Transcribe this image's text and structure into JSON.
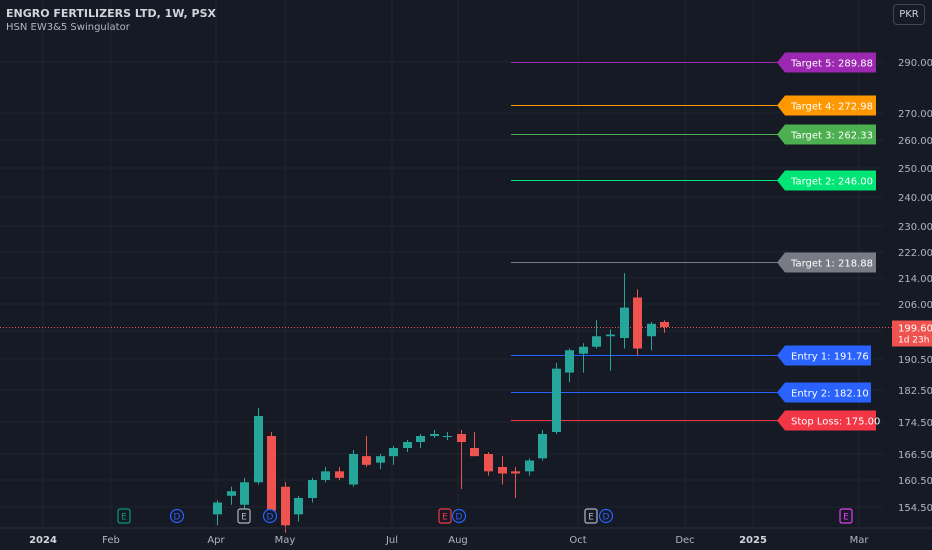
{
  "header": {
    "title": "ENGRO FERTILIZERS LTD, 1W, PSX",
    "indicator": "HSN EW3&5 Swingulator",
    "currency": "PKR"
  },
  "colors": {
    "background": "#161a25",
    "grid": "#1f2430",
    "axis_text": "#b2b5be",
    "up": "#26a69a",
    "down": "#ef5350",
    "price_line": "#ef5350"
  },
  "chart_data": {
    "type": "candlestick",
    "y_axis": {
      "position": "right",
      "ticks": [
        "290.00",
        "270.00",
        "260.00",
        "250.00",
        "240.00",
        "230.00",
        "222.00",
        "214.00",
        "206.00",
        "198.50",
        "190.50",
        "182.50",
        "174.50",
        "166.50",
        "160.50",
        "154.50"
      ]
    },
    "x_axis": {
      "ticks": [
        "2024",
        "Feb",
        "Apr",
        "May",
        "Jul",
        "Aug",
        "Oct",
        "Dec",
        "2025",
        "Mar"
      ]
    },
    "candles": [
      {
        "o": 153.5,
        "h": 156.0,
        "l": 152.0,
        "c": 155.5
      },
      {
        "o": 157.0,
        "h": 159.0,
        "l": 155.0,
        "c": 158.0
      },
      {
        "o": 155.0,
        "h": 161.0,
        "l": 153.0,
        "c": 160.0
      },
      {
        "o": 160.0,
        "h": 178.0,
        "l": 159.5,
        "c": 176.0
      },
      {
        "o": 171.0,
        "h": 172.0,
        "l": 153.0,
        "c": 154.0
      },
      {
        "o": 159.0,
        "h": 160.0,
        "l": 151.0,
        "c": 152.0
      },
      {
        "o": 153.5,
        "h": 157.0,
        "l": 152.5,
        "c": 156.5
      },
      {
        "o": 156.5,
        "h": 161.0,
        "l": 155.5,
        "c": 160.5
      },
      {
        "o": 160.5,
        "h": 163.5,
        "l": 160.0,
        "c": 162.5
      },
      {
        "o": 162.5,
        "h": 163.5,
        "l": 160.5,
        "c": 161.0
      },
      {
        "o": 159.5,
        "h": 167.5,
        "l": 159.0,
        "c": 166.5
      },
      {
        "o": 166.0,
        "h": 171.0,
        "l": 163.5,
        "c": 164.0
      },
      {
        "o": 164.5,
        "h": 166.5,
        "l": 163.0,
        "c": 166.0
      },
      {
        "o": 166.0,
        "h": 168.5,
        "l": 164.0,
        "c": 168.0
      },
      {
        "o": 168.0,
        "h": 170.0,
        "l": 167.0,
        "c": 169.5
      },
      {
        "o": 169.5,
        "h": 171.5,
        "l": 168.0,
        "c": 171.0
      },
      {
        "o": 171.0,
        "h": 172.5,
        "l": 170.5,
        "c": 171.5
      },
      {
        "o": 171.0,
        "h": 172.0,
        "l": 170.0,
        "c": 171.0
      },
      {
        "o": 171.5,
        "h": 172.5,
        "l": 158.5,
        "c": 169.5
      },
      {
        "o": 168.0,
        "h": 172.0,
        "l": 166.0,
        "c": 166.0
      },
      {
        "o": 166.5,
        "h": 167.0,
        "l": 161.5,
        "c": 162.5
      },
      {
        "o": 163.5,
        "h": 166.0,
        "l": 159.5,
        "c": 162.0
      },
      {
        "o": 162.5,
        "h": 163.5,
        "l": 156.5,
        "c": 162.0
      },
      {
        "o": 162.5,
        "h": 165.5,
        "l": 161.5,
        "c": 165.0
      },
      {
        "o": 165.5,
        "h": 172.5,
        "l": 165.0,
        "c": 171.5
      },
      {
        "o": 172.0,
        "h": 189.5,
        "l": 171.5,
        "c": 188.0
      },
      {
        "o": 187.0,
        "h": 193.5,
        "l": 184.5,
        "c": 193.0
      },
      {
        "o": 192.0,
        "h": 195.0,
        "l": 187.0,
        "c": 194.0
      },
      {
        "o": 194.0,
        "h": 201.5,
        "l": 193.5,
        "c": 197.0
      },
      {
        "o": 197.0,
        "h": 199.0,
        "l": 187.5,
        "c": 197.5
      },
      {
        "o": 196.5,
        "h": 215.5,
        "l": 193.5,
        "c": 205.0
      },
      {
        "o": 208.0,
        "h": 210.5,
        "l": 191.5,
        "c": 193.5
      },
      {
        "o": 197.0,
        "h": 201.0,
        "l": 193.0,
        "c": 200.5
      },
      {
        "o": 201.0,
        "h": 201.5,
        "l": 198.0,
        "c": 199.6
      }
    ],
    "levels": [
      {
        "label": "Target 5: 289.88",
        "value": 289.88,
        "color": "#9c27b0"
      },
      {
        "label": "Target 4: 272.98",
        "value": 272.98,
        "color": "#ff9800"
      },
      {
        "label": "Target 3: 262.33",
        "value": 262.33,
        "color": "#4caf50"
      },
      {
        "label": "Target 2: 246.00",
        "value": 246.0,
        "color": "#00e676"
      },
      {
        "label": "Target 1: 218.88",
        "value": 218.88,
        "color": "#787b86"
      },
      {
        "label": "Entry 1: 191.76",
        "value": 191.76,
        "color": "#2962ff"
      },
      {
        "label": "Entry 2: 182.10",
        "value": 182.1,
        "color": "#2962ff"
      },
      {
        "label": "Stop Loss: 175.00",
        "value": 175.0,
        "color": "#f23645"
      }
    ],
    "last_price": {
      "value": "199.60",
      "countdown": "1d 23h"
    },
    "events": [
      {
        "letter": "E",
        "kind": "earnings",
        "color": "#089981"
      },
      {
        "letter": "D",
        "kind": "dividend",
        "color": "#2962ff"
      },
      {
        "letter": "E",
        "kind": "earnings",
        "color": "#b2b5be"
      },
      {
        "letter": "D",
        "kind": "dividend",
        "color": "#2962ff"
      },
      {
        "letter": "E",
        "kind": "earnings",
        "color": "#f23645"
      },
      {
        "letter": "D",
        "kind": "dividend",
        "color": "#2962ff"
      },
      {
        "letter": "E",
        "kind": "earnings",
        "color": "#b2b5be"
      },
      {
        "letter": "D",
        "kind": "dividend",
        "color": "#2962ff"
      },
      {
        "letter": "E",
        "kind": "earnings",
        "color": "#e040fb"
      }
    ]
  }
}
